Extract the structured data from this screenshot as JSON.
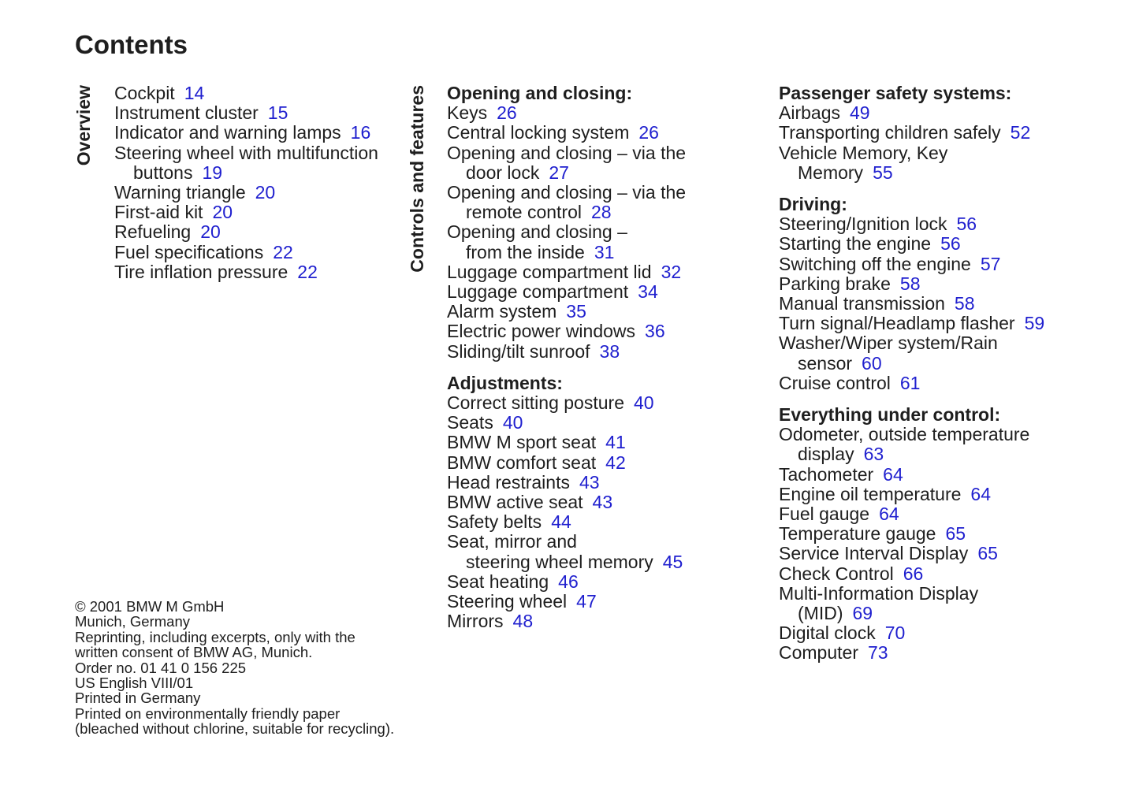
{
  "page_title": "Contents",
  "colors": {
    "text": "#1e1e1e",
    "page_number_link": "#2020cf",
    "background": "#ffffff"
  },
  "columns": [
    {
      "side_label": "Overview",
      "sections": [
        {
          "heading": null,
          "entries": [
            {
              "lines": [
                "Cockpit"
              ],
              "page": "14"
            },
            {
              "lines": [
                "Instrument cluster"
              ],
              "page": "15"
            },
            {
              "lines": [
                "Indicator and warning lamps"
              ],
              "page": "16"
            },
            {
              "lines": [
                "Steering wheel with multifunction",
                "buttons"
              ],
              "page": "19"
            },
            {
              "lines": [
                "Warning triangle"
              ],
              "page": "20"
            },
            {
              "lines": [
                "First-aid kit"
              ],
              "page": "20"
            },
            {
              "lines": [
                "Refueling"
              ],
              "page": "20"
            },
            {
              "lines": [
                "Fuel specifications"
              ],
              "page": "22"
            },
            {
              "lines": [
                "Tire inflation pressure"
              ],
              "page": "22"
            }
          ]
        }
      ]
    },
    {
      "side_label": "Controls and features",
      "sections": [
        {
          "heading": "Opening and closing:",
          "entries": [
            {
              "lines": [
                "Keys"
              ],
              "page": "26"
            },
            {
              "lines": [
                "Central locking system"
              ],
              "page": "26"
            },
            {
              "lines": [
                "Opening and closing – via the",
                "door lock"
              ],
              "page": "27"
            },
            {
              "lines": [
                "Opening and closing – via the",
                "remote control"
              ],
              "page": "28"
            },
            {
              "lines": [
                "Opening and closing –",
                "from the inside"
              ],
              "page": "31"
            },
            {
              "lines": [
                "Luggage compartment lid"
              ],
              "page": "32"
            },
            {
              "lines": [
                "Luggage compartment"
              ],
              "page": "34"
            },
            {
              "lines": [
                "Alarm system"
              ],
              "page": "35"
            },
            {
              "lines": [
                "Electric power windows"
              ],
              "page": "36"
            },
            {
              "lines": [
                "Sliding/tilt sunroof"
              ],
              "page": "38"
            }
          ]
        },
        {
          "heading": "Adjustments:",
          "entries": [
            {
              "lines": [
                "Correct sitting posture"
              ],
              "page": "40"
            },
            {
              "lines": [
                "Seats"
              ],
              "page": "40"
            },
            {
              "lines": [
                "BMW M sport seat"
              ],
              "page": "41"
            },
            {
              "lines": [
                "BMW comfort seat"
              ],
              "page": "42"
            },
            {
              "lines": [
                "Head restraints"
              ],
              "page": "43"
            },
            {
              "lines": [
                "BMW active seat"
              ],
              "page": "43"
            },
            {
              "lines": [
                "Safety belts"
              ],
              "page": "44"
            },
            {
              "lines": [
                "Seat, mirror and",
                "steering wheel memory"
              ],
              "page": "45"
            },
            {
              "lines": [
                "Seat heating"
              ],
              "page": "46"
            },
            {
              "lines": [
                "Steering wheel"
              ],
              "page": "47"
            },
            {
              "lines": [
                "Mirrors"
              ],
              "page": "48"
            }
          ]
        }
      ]
    },
    {
      "side_label": null,
      "sections": [
        {
          "heading": "Passenger safety systems:",
          "entries": [
            {
              "lines": [
                "Airbags"
              ],
              "page": "49"
            },
            {
              "lines": [
                "Transporting children safely"
              ],
              "page": "52"
            },
            {
              "lines": [
                "Vehicle Memory, Key",
                "Memory"
              ],
              "page": "55"
            }
          ]
        },
        {
          "heading": "Driving:",
          "entries": [
            {
              "lines": [
                "Steering/Ignition lock"
              ],
              "page": "56"
            },
            {
              "lines": [
                "Starting the engine"
              ],
              "page": "56"
            },
            {
              "lines": [
                "Switching off the engine"
              ],
              "page": "57"
            },
            {
              "lines": [
                "Parking brake"
              ],
              "page": "58"
            },
            {
              "lines": [
                "Manual transmission"
              ],
              "page": "58"
            },
            {
              "lines": [
                "Turn signal/Headlamp flasher"
              ],
              "page": "59"
            },
            {
              "lines": [
                "Washer/Wiper system/Rain",
                "sensor"
              ],
              "page": "60"
            },
            {
              "lines": [
                "Cruise control"
              ],
              "page": "61"
            }
          ]
        },
        {
          "heading": "Everything under control:",
          "entries": [
            {
              "lines": [
                "Odometer, outside temperature",
                "display"
              ],
              "page": "63"
            },
            {
              "lines": [
                "Tachometer"
              ],
              "page": "64"
            },
            {
              "lines": [
                "Engine oil temperature"
              ],
              "page": "64"
            },
            {
              "lines": [
                "Fuel gauge"
              ],
              "page": "64"
            },
            {
              "lines": [
                "Temperature gauge"
              ],
              "page": "65"
            },
            {
              "lines": [
                "Service Interval Display"
              ],
              "page": "65"
            },
            {
              "lines": [
                "Check Control"
              ],
              "page": "66"
            },
            {
              "lines": [
                "Multi-Information Display",
                "(MID)"
              ],
              "page": "69"
            },
            {
              "lines": [
                "Digital clock"
              ],
              "page": "70"
            },
            {
              "lines": [
                "Computer"
              ],
              "page": "73"
            }
          ]
        }
      ]
    }
  ],
  "footer_lines": [
    "© 2001 BMW M GmbH",
    "Munich, Germany",
    "Reprinting, including excerpts, only with the",
    "written consent of BMW AG, Munich.",
    "Order no. 01 41 0 156 225",
    "US English VIII/01",
    "Printed in Germany",
    "Printed on environmentally friendly paper",
    "(bleached without chlorine, suitable for recycling)."
  ]
}
